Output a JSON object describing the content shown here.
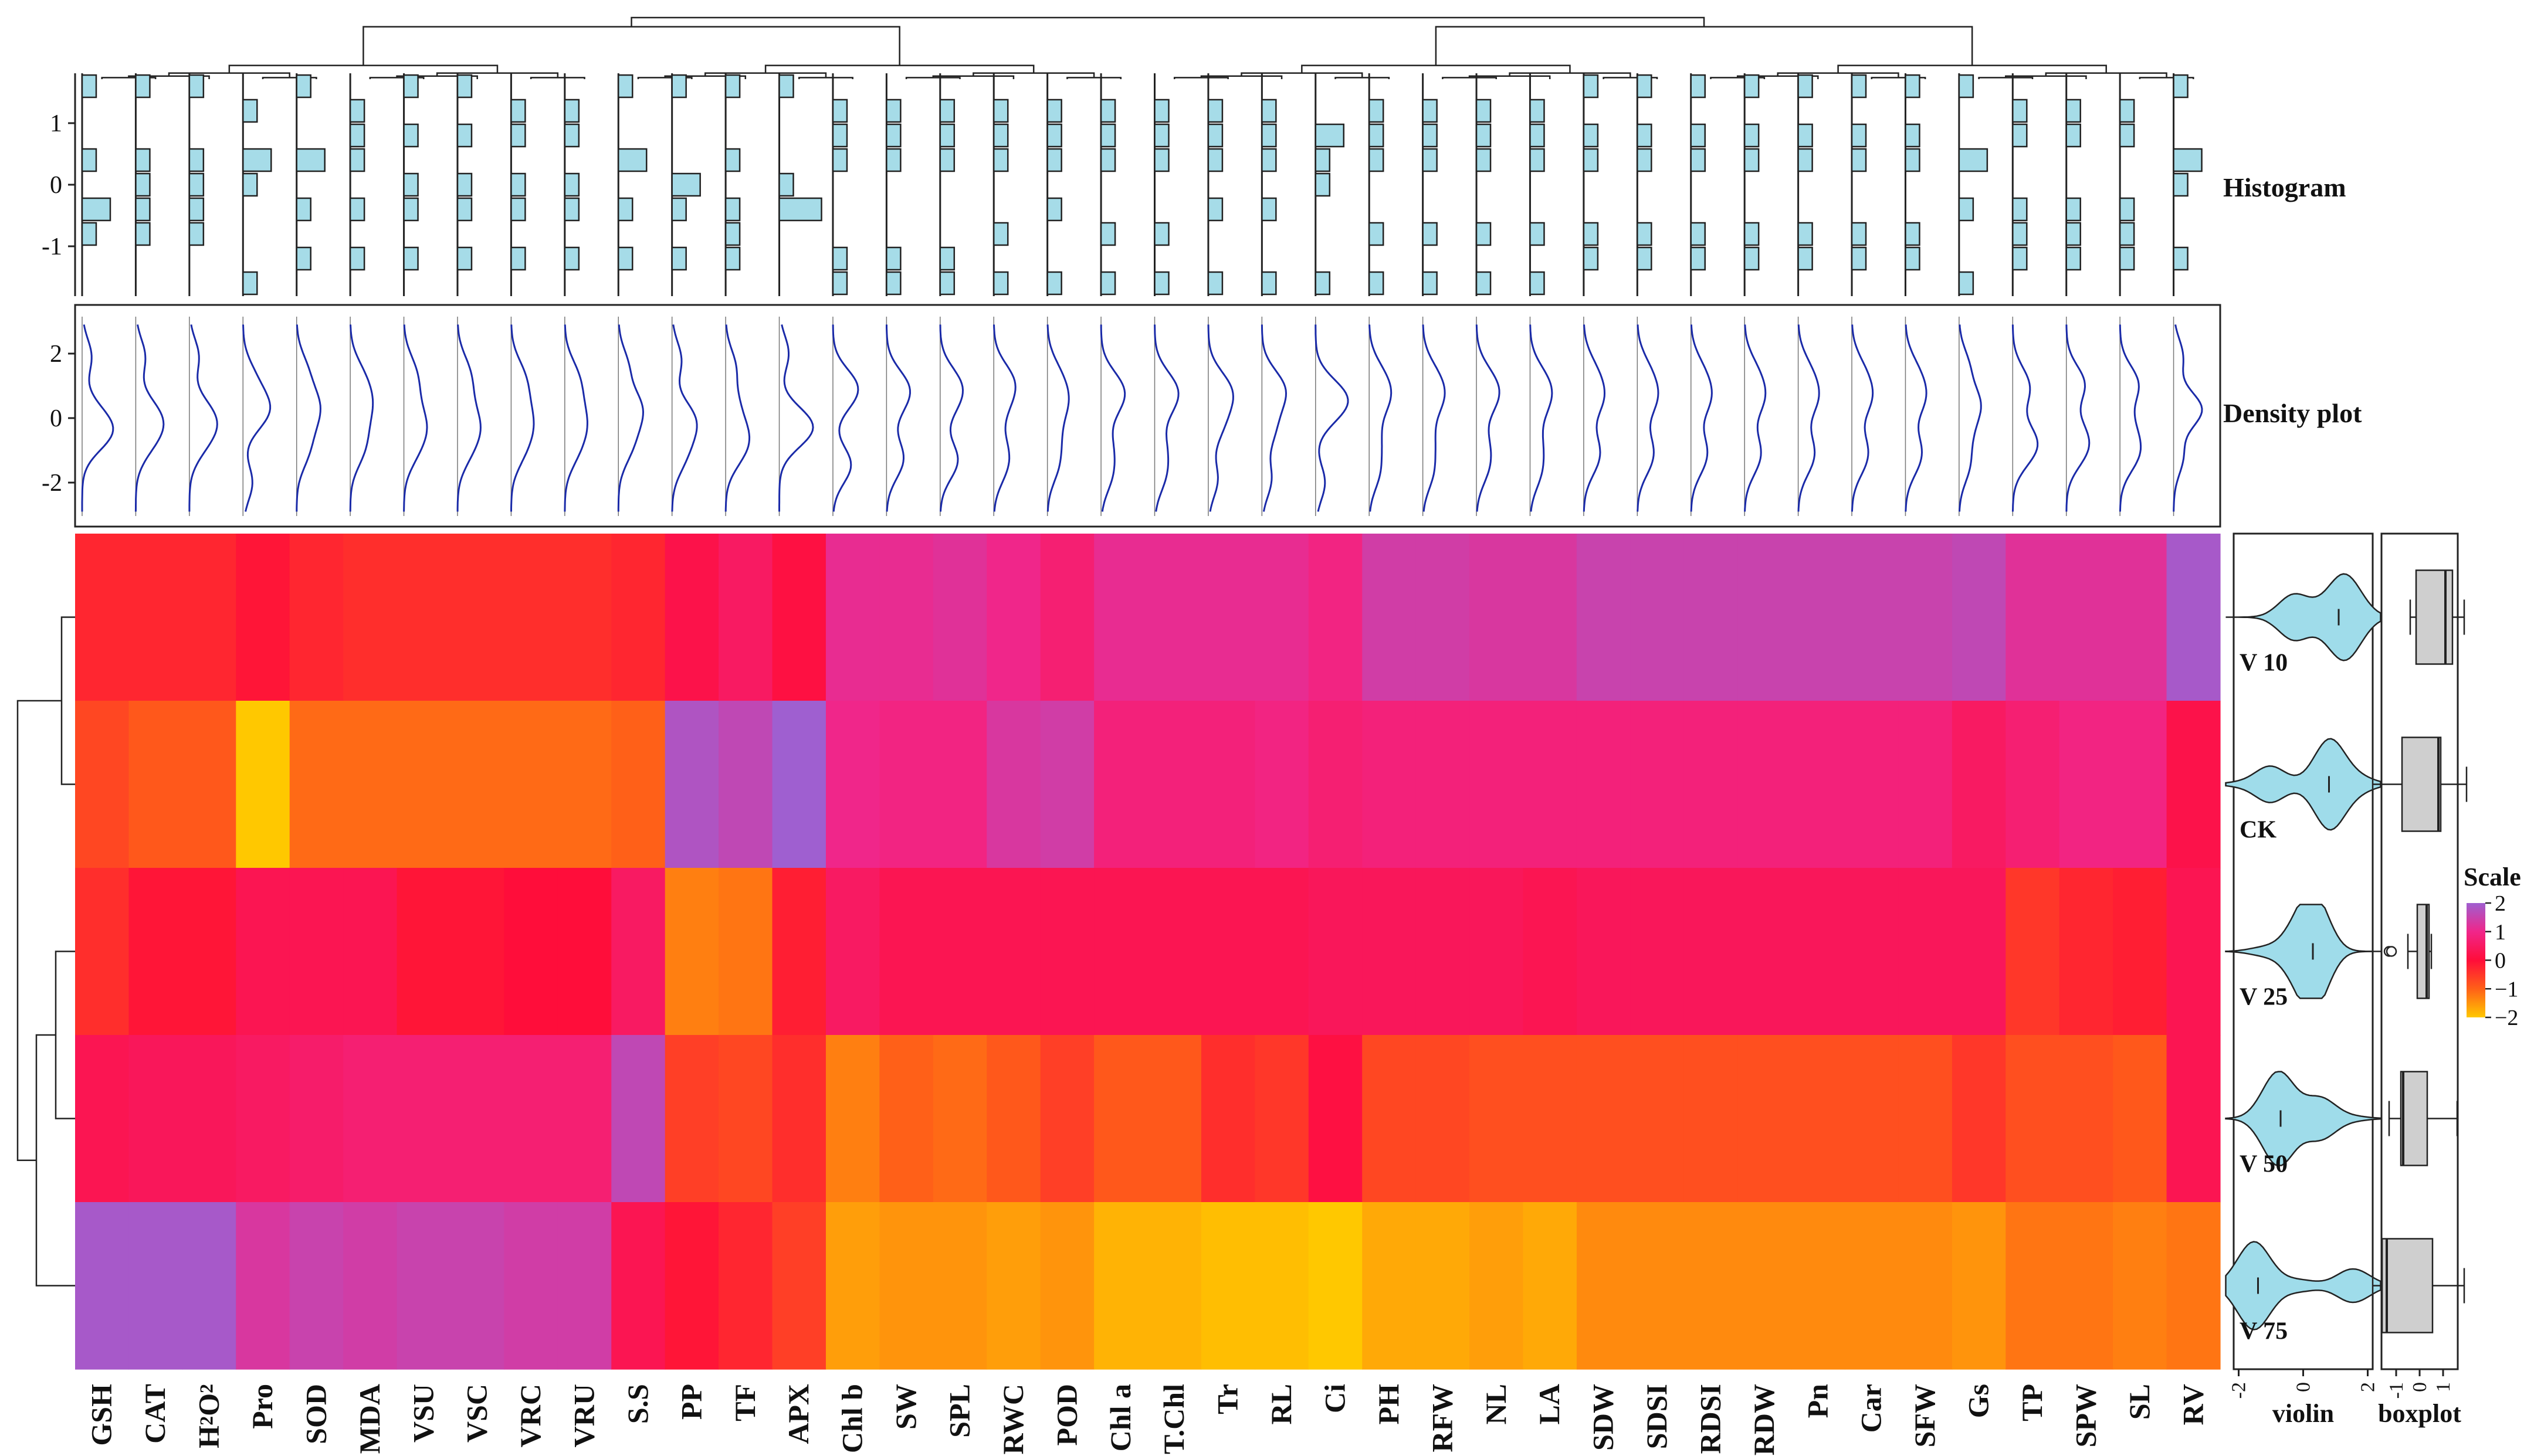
{
  "chart_data": {
    "type": "heatmap",
    "columns": [
      "GSH",
      "CAT",
      "H2O2",
      "Pro",
      "SOD",
      "MDA",
      "VSU",
      "VSC",
      "VRC",
      "VRU",
      "S.S",
      "PP",
      "TF",
      "APX",
      "Chl b",
      "SW",
      "SPL",
      "RWC",
      "POD",
      "Chl a",
      "T.Chl",
      "Tr",
      "RL",
      "Ci",
      "PH",
      "RFW",
      "NL",
      "LA",
      "SDW",
      "SDSI",
      "RDSI",
      "RDW",
      "Pn",
      "Car",
      "SFW",
      "Gs",
      "TP",
      "SPW",
      "SL",
      "RV"
    ],
    "rows": [
      "V 10",
      "CK",
      "V 25",
      "V 50",
      "V 75"
    ],
    "values": [
      [
        -0.3,
        -0.3,
        -0.3,
        -0.1,
        -0.3,
        -0.4,
        -0.4,
        -0.4,
        -0.4,
        -0.4,
        -0.3,
        0.2,
        0.5,
        0.1,
        1.1,
        1.1,
        1.2,
        1.0,
        0.7,
        1.1,
        1.1,
        1.1,
        1.1,
        0.9,
        1.4,
        1.4,
        1.3,
        1.3,
        1.5,
        1.5,
        1.5,
        1.5,
        1.5,
        1.5,
        1.5,
        1.6,
        1.2,
        1.2,
        1.2,
        1.9
      ],
      [
        -0.7,
        -0.9,
        -0.9,
        -2.0,
        -1.1,
        -1.1,
        -1.1,
        -1.1,
        -1.1,
        -1.1,
        -1.0,
        1.8,
        1.6,
        2.0,
        1.0,
        0.9,
        0.9,
        1.3,
        1.4,
        0.8,
        0.8,
        0.8,
        0.9,
        0.7,
        0.8,
        0.8,
        0.8,
        0.8,
        0.8,
        0.8,
        0.8,
        0.8,
        0.8,
        0.8,
        0.8,
        0.5,
        0.7,
        0.9,
        0.9,
        0.2
      ],
      [
        -0.4,
        -0.1,
        -0.1,
        0.3,
        0.3,
        0.3,
        -0.1,
        -0.1,
        0.0,
        0.0,
        0.5,
        -1.3,
        -1.2,
        -0.2,
        0.5,
        0.3,
        0.3,
        0.3,
        0.3,
        0.3,
        0.3,
        0.3,
        0.3,
        0.4,
        0.4,
        0.4,
        0.4,
        0.3,
        0.4,
        0.4,
        0.4,
        0.4,
        0.4,
        0.4,
        0.4,
        0.4,
        -0.5,
        -0.3,
        -0.2,
        0.3
      ],
      [
        0.3,
        0.4,
        0.4,
        0.5,
        0.6,
        0.7,
        0.7,
        0.7,
        0.7,
        0.7,
        1.6,
        -0.6,
        -0.7,
        -0.4,
        -1.3,
        -1.0,
        -1.1,
        -0.9,
        -0.6,
        -0.9,
        -0.9,
        -0.4,
        -0.5,
        0.1,
        -0.7,
        -0.7,
        -0.8,
        -0.8,
        -0.8,
        -0.8,
        -0.8,
        -0.8,
        -0.8,
        -0.8,
        -0.8,
        -0.5,
        -0.8,
        -0.8,
        -0.9,
        0.3
      ],
      [
        1.9,
        1.9,
        1.9,
        1.3,
        1.5,
        1.4,
        1.5,
        1.5,
        1.4,
        1.4,
        0.3,
        -0.1,
        -0.3,
        -0.6,
        -1.6,
        -1.5,
        -1.5,
        -1.6,
        -1.5,
        -1.8,
        -1.8,
        -1.9,
        -1.9,
        -2.0,
        -1.7,
        -1.7,
        -1.6,
        -1.7,
        -1.4,
        -1.4,
        -1.4,
        -1.4,
        -1.4,
        -1.4,
        -1.4,
        -1.5,
        -1.2,
        -1.2,
        -1.3,
        -1.2
      ]
    ],
    "scale": {
      "title": "Scale",
      "ticks": [
        2,
        1,
        0,
        -1,
        -2
      ],
      "colors": [
        "#9f5fd0",
        "#f0268a",
        "#ff0d3a",
        "#ff6018",
        "#ffc800"
      ]
    },
    "histogram": {
      "title": "Histogram",
      "ticks": [
        1,
        0,
        -1
      ],
      "bar_color": "#a6dce8"
    },
    "density": {
      "title": "Density plot",
      "ticks": [
        2,
        0,
        -2
      ],
      "line_color": "#1a2aa8"
    },
    "violin": {
      "xlabel": "violin",
      "ticks": [
        -2,
        0,
        2
      ],
      "color": "#9fdcea"
    },
    "boxplot": {
      "xlabel": "boxplot",
      "ticks": [
        -1,
        0,
        1
      ],
      "color": "#cfcfcf"
    }
  }
}
